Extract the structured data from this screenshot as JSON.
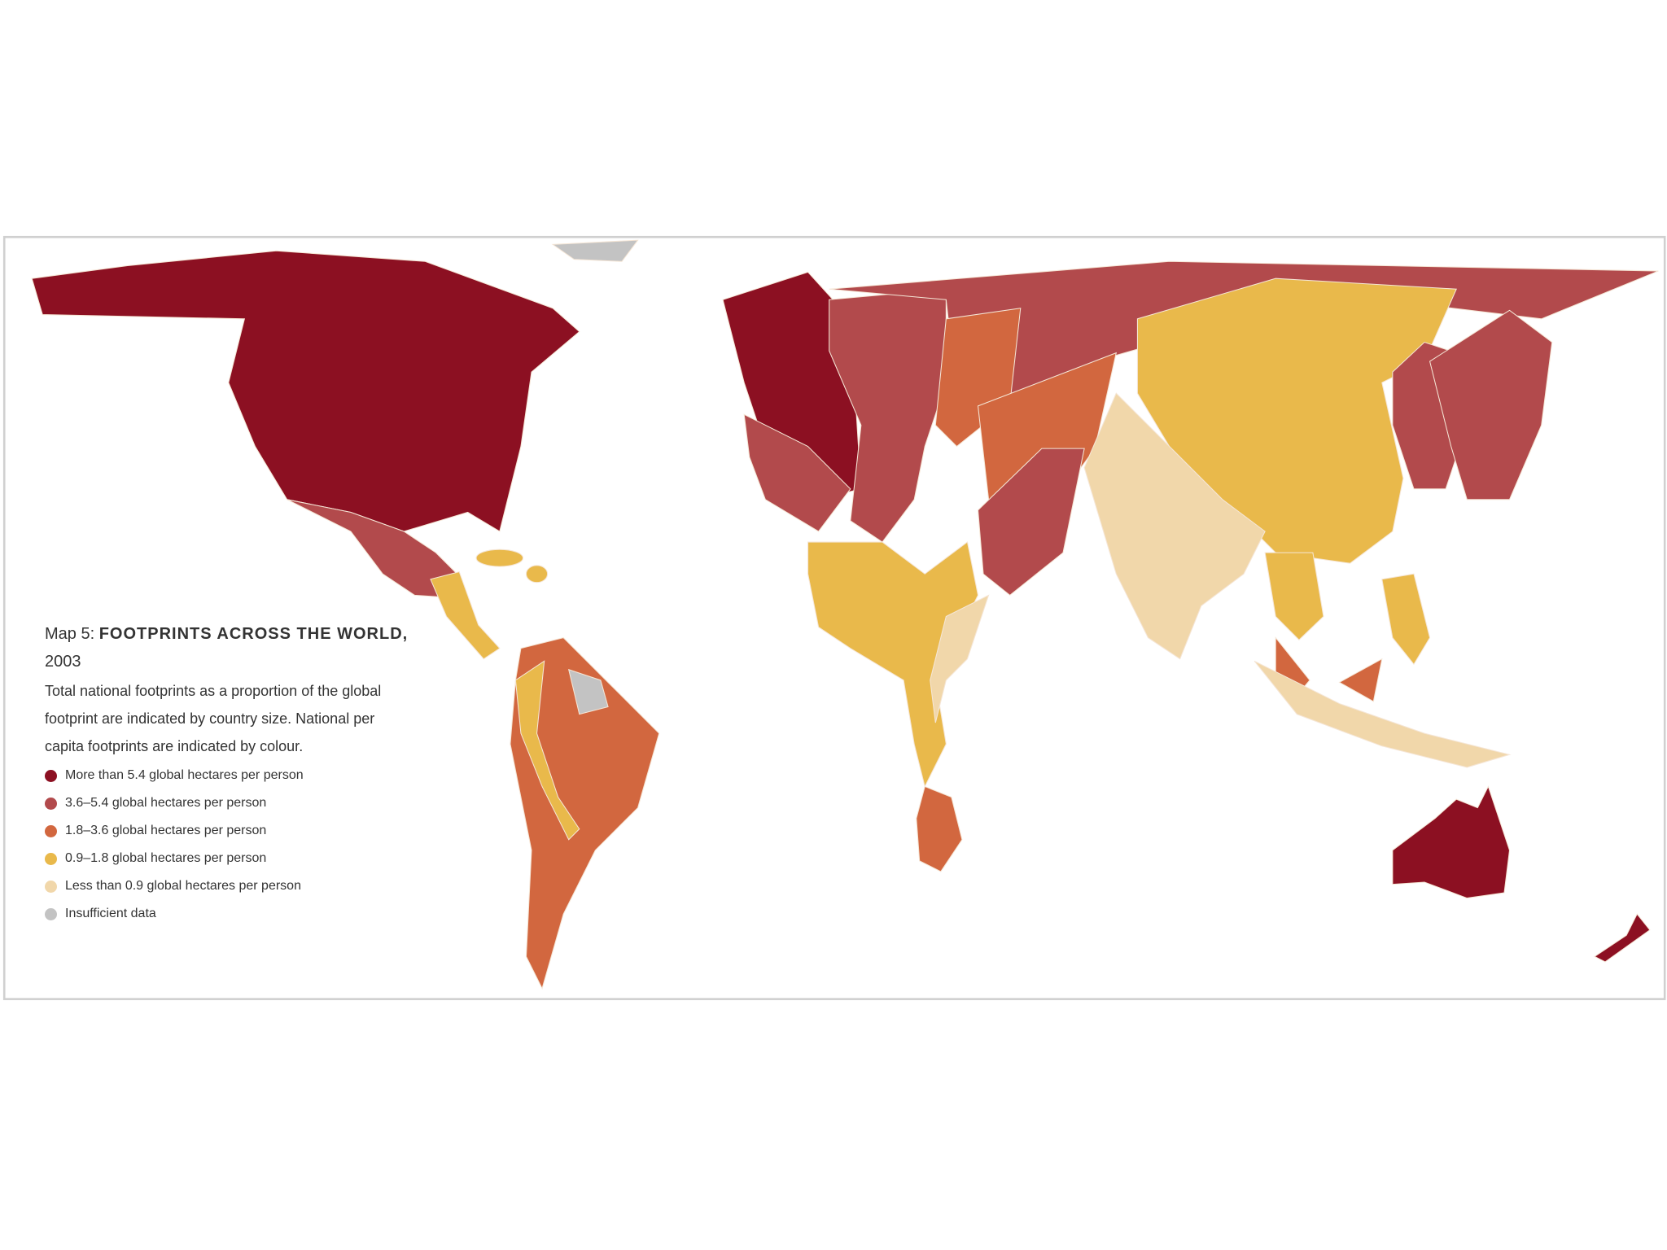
{
  "map": {
    "label": "Map 5:",
    "title": "FOOTPRINTS ACROSS THE WORLD,",
    "year": "2003",
    "description": "Total national footprints as a proportion of the global footprint are indicated by country size. National per capita footprints are indicated by colour.",
    "legend": [
      {
        "label": "More than 5.4 global hectares per person",
        "color": "#8c1022"
      },
      {
        "label": "3.6–5.4 global hectares per person",
        "color": "#b24a4c"
      },
      {
        "label": "1.8–3.6 global hectares per person",
        "color": "#d2673f"
      },
      {
        "label": "0.9–1.8 global hectares per person",
        "color": "#e9b94b"
      },
      {
        "label": "Less than 0.9 global hectares per person",
        "color": "#f1d7aa"
      },
      {
        "label": "Insufficient data",
        "color": "#c3c3c3"
      }
    ]
  }
}
